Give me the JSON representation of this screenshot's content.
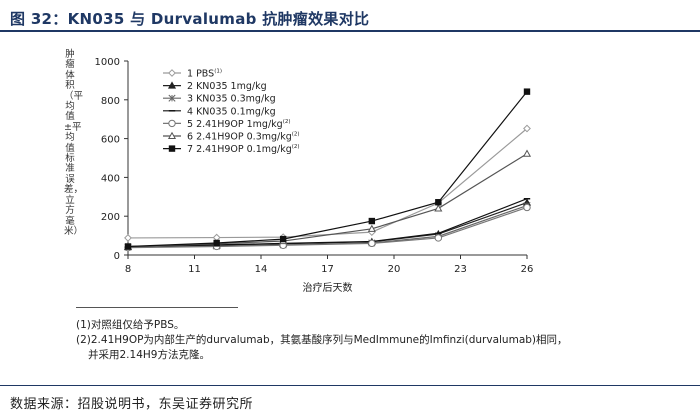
{
  "header": {
    "title": "图 32：KN035 与 Durvalumab 抗肿瘤效果对比"
  },
  "chart_data": {
    "type": "line",
    "xlabel": "治疗后天数",
    "ylabel": "肿瘤体积（平均值±平均值标准误差，立方毫米）",
    "xlim": [
      8,
      26
    ],
    "ylim": [
      0,
      1000
    ],
    "x_ticks": [
      8,
      11,
      14,
      17,
      20,
      23,
      26
    ],
    "y_ticks": [
      0,
      200,
      400,
      600,
      800,
      1000
    ],
    "legend_position": "top-left",
    "grid": false,
    "x": [
      8,
      12,
      15,
      19,
      22,
      26
    ],
    "series": [
      {
        "name": "1 PBS",
        "sup": "(1)",
        "marker": "open-diamond",
        "color": "#9a9a9a",
        "values": [
          88,
          90,
          92,
          118,
          268,
          652
        ]
      },
      {
        "name": "2 KN035 1mg/kg",
        "sup": "",
        "marker": "filled-triangle",
        "color": "#222222",
        "values": [
          42,
          50,
          58,
          68,
          108,
          270
        ]
      },
      {
        "name": "3 KN035 0.3mg/kg",
        "sup": "",
        "marker": "asterisk",
        "color": "#666666",
        "values": [
          40,
          46,
          52,
          62,
          96,
          255
        ]
      },
      {
        "name": "4 KN035 0.1mg/kg",
        "sup": "",
        "marker": "dash",
        "color": "#111111",
        "values": [
          44,
          52,
          60,
          70,
          112,
          290
        ]
      },
      {
        "name": "5 2.41H9OP 1mg/kg",
        "sup": "(2)",
        "marker": "open-circle",
        "color": "#777777",
        "values": [
          38,
          44,
          50,
          60,
          88,
          245
        ]
      },
      {
        "name": "6 2.41H9OP 0.3mg/kg",
        "sup": "(2)",
        "marker": "open-triangle",
        "color": "#555555",
        "values": [
          42,
          58,
          72,
          135,
          240,
          522
        ]
      },
      {
        "name": "7 2.41H9OP 0.1mg/kg",
        "sup": "(2)",
        "marker": "filled-square",
        "color": "#111111",
        "values": [
          44,
          62,
          82,
          175,
          272,
          842
        ]
      }
    ]
  },
  "notes": {
    "line1": "(1)对照组仅给予PBS。",
    "line2": "(2)2.41H9OP为内部生产的durvalumab，其氨基酸序列与MedImmune的Imfinzi(durvalumab)相同，",
    "line3": "并采用2.14H9方法克隆。"
  },
  "footer": {
    "source": "数据来源：招股说明书，东吴证券研究所"
  }
}
